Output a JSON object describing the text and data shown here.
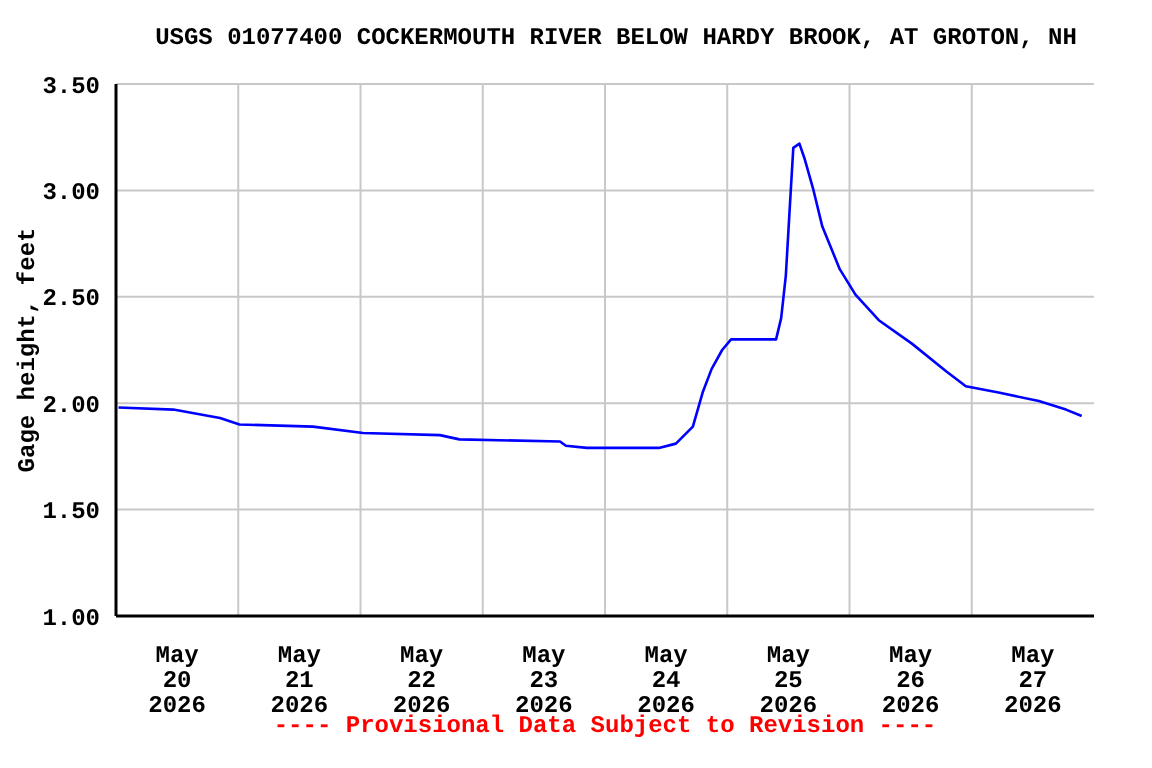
{
  "chart_data": {
    "type": "line",
    "title": "USGS 01077400 COCKERMOUTH RIVER BELOW HARDY BROOK, AT GROTON, NH",
    "ylabel": "Gage height, feet",
    "annotations": [
      "---- Provisional Data Subject to Revision ----"
    ],
    "x": [
      "2026-05-20T00:30",
      "2026-05-20T11:15",
      "2026-05-20T20:25",
      "2026-05-21T00:15",
      "2026-05-21T14:40",
      "2026-05-22T00:30",
      "2026-05-22T15:35",
      "2026-05-22T19:25",
      "2026-05-23T15:10",
      "2026-05-23T16:20",
      "2026-05-23T20:25",
      "2026-05-24T10:35",
      "2026-05-24T13:55",
      "2026-05-24T17:15",
      "2026-05-24T19:10",
      "2026-05-24T20:55",
      "2026-05-24T23:00",
      "2026-05-25T00:45",
      "2026-05-25T09:35",
      "2026-05-25T10:35",
      "2026-05-25T11:30",
      "2026-05-25T12:15",
      "2026-05-25T12:58",
      "2026-05-25T14:10",
      "2026-05-25T15:10",
      "2026-05-25T16:50",
      "2026-05-25T18:40",
      "2026-05-25T22:05",
      "2026-05-26T01:10",
      "2026-05-26T05:45",
      "2026-05-26T12:15",
      "2026-05-26T18:58",
      "2026-05-26T22:50",
      "2026-05-27T05:15",
      "2026-05-27T13:10",
      "2026-05-27T18:30",
      "2026-05-27T21:35"
    ],
    "series": [
      {
        "color": "#0000ff",
        "values": [
          1.98,
          1.97,
          1.93,
          1.9,
          1.89,
          1.86,
          1.85,
          1.83,
          1.82,
          1.8,
          1.79,
          1.79,
          1.81,
          1.89,
          2.05,
          2.16,
          2.25,
          2.3,
          2.3,
          2.4,
          2.6,
          2.91,
          3.2,
          3.22,
          3.15,
          3.01,
          2.83,
          2.63,
          2.51,
          2.39,
          2.28,
          2.15,
          2.08,
          2.05,
          2.01,
          1.97,
          1.94
        ]
      }
    ],
    "xlim": [
      "2026-05-20T00:00",
      "2026-05-28T00:00"
    ],
    "xticks": [
      {
        "value": "2026-05-20T12:00",
        "label": "May\n20\n2026"
      },
      {
        "value": "2026-05-21T00:00",
        "label": null
      },
      {
        "value": "2026-05-21T12:00",
        "label": "May\n21\n2026"
      },
      {
        "value": "2026-05-22T00:00",
        "label": null
      },
      {
        "value": "2026-05-22T12:00",
        "label": "May\n22\n2026"
      },
      {
        "value": "2026-05-23T00:00",
        "label": null
      },
      {
        "value": "2026-05-23T12:00",
        "label": "May\n23\n2026"
      },
      {
        "value": "2026-05-24T00:00",
        "label": null
      },
      {
        "value": "2026-05-24T12:00",
        "label": "May\n24\n2026"
      },
      {
        "value": "2026-05-25T00:00",
        "label": null
      },
      {
        "value": "2026-05-25T12:00",
        "label": "May\n25\n2026"
      },
      {
        "value": "2026-05-26T00:00",
        "label": null
      },
      {
        "value": "2026-05-26T12:00",
        "label": "May\n26\n2026"
      },
      {
        "value": "2026-05-27T00:00",
        "label": null
      },
      {
        "value": "2026-05-27T12:00",
        "label": "May\n27\n2026"
      }
    ],
    "ylim": [
      1,
      3.5
    ],
    "yticks": [
      {
        "value": 1,
        "label": "1.00"
      },
      {
        "value": 1.5,
        "label": "1.50"
      },
      {
        "value": 2,
        "label": "2.00"
      },
      {
        "value": 2.5,
        "label": "2.50"
      },
      {
        "value": 3,
        "label": "3.00"
      },
      {
        "value": 3.5,
        "label": "3.50"
      }
    ],
    "grid": true,
    "legend": false,
    "marker": "none",
    "line_style": "solid"
  }
}
